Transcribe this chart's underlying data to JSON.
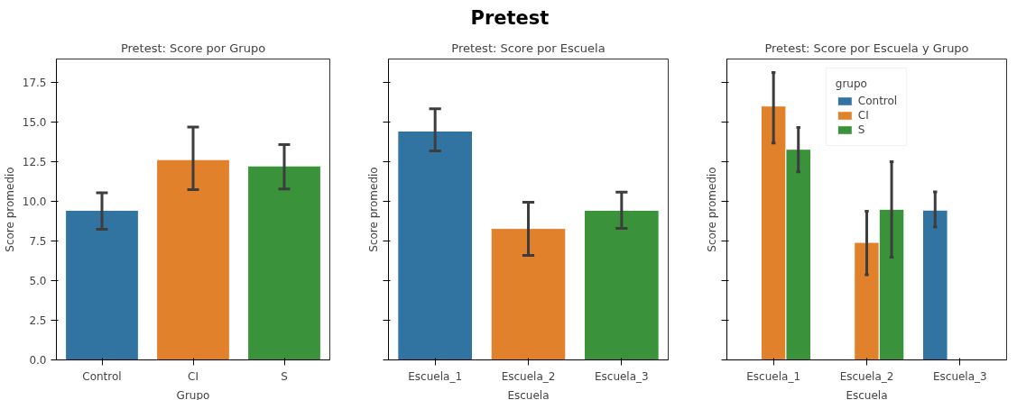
{
  "chart_data": [
    {
      "type": "other",
      "title": "Pretest"
    },
    {
      "type": "bar",
      "title": "Pretest: Score por Grupo",
      "xlabel": "Grupo",
      "ylabel": "Score promedio",
      "categories": [
        "Control",
        "CI",
        "S"
      ],
      "values": [
        9.45,
        12.65,
        12.25
      ],
      "colors": [
        "#3274a1",
        "#e1812c",
        "#3a923a"
      ],
      "errors": [
        [
          8.25,
          10.55
        ],
        [
          10.75,
          14.7
        ],
        [
          10.8,
          13.6
        ]
      ],
      "ylim": [
        0,
        19
      ],
      "yticks": [
        {
          "value": 0,
          "label": "0.0"
        },
        {
          "value": 2.5,
          "label": "2.5"
        },
        {
          "value": 5,
          "label": "5.0"
        },
        {
          "value": 7.5,
          "label": "7.5"
        },
        {
          "value": 10,
          "label": "10.0"
        },
        {
          "value": 12.5,
          "label": "12.5"
        },
        {
          "value": 15,
          "label": "15.0"
        },
        {
          "value": 17.5,
          "label": "17.5"
        }
      ],
      "grid": false,
      "legend": false
    },
    {
      "type": "bar",
      "title": "Pretest: Score por Escuela",
      "xlabel": "Escuela",
      "ylabel": "Score promedio",
      "categories": [
        "Escuela_1",
        "Escuela_2",
        "Escuela_3"
      ],
      "values": [
        14.45,
        8.3,
        9.45
      ],
      "colors": [
        "#3274a1",
        "#e1812c",
        "#3a923a"
      ],
      "errors": [
        [
          13.2,
          15.85
        ],
        [
          6.6,
          9.95
        ],
        [
          8.3,
          10.6
        ]
      ],
      "ylim": [
        0,
        19
      ],
      "yticks": [
        0,
        2.5,
        5,
        7.5,
        10,
        12.5,
        15,
        17.5
      ],
      "tick_labels": "x",
      "grid": false,
      "legend": false
    },
    {
      "type": "bar",
      "title": "Pretest: Score por Escuela y Grupo",
      "xlabel": "Escuela",
      "ylabel": "Score promedio",
      "categories": [
        "Escuela_1",
        "Escuela_2",
        "Escuela_3"
      ],
      "legend_title": "grupo",
      "series": [
        {
          "name": "Control",
          "color": "#3274a1",
          "values": [
            null,
            null,
            9.46
          ],
          "errors": [
            null,
            null,
            [
              8.39,
              10.61
            ]
          ]
        },
        {
          "name": "CI",
          "color": "#e1812c",
          "values": [
            16.03,
            7.42,
            null
          ],
          "errors": [
            [
              13.7,
              18.14
            ],
            [
              5.38,
              9.38
            ],
            null
          ]
        },
        {
          "name": "S",
          "color": "#3a923a",
          "values": [
            13.3,
            9.51,
            null
          ],
          "errors": [
            [
              11.88,
              14.67
            ],
            [
              6.48,
              12.52
            ],
            null
          ]
        }
      ],
      "ylim": [
        0,
        19
      ],
      "yticks": [
        0,
        2.5,
        5,
        7.5,
        10,
        12.5,
        15,
        17.5
      ],
      "tick_labels": "x",
      "grid": false,
      "legend": "top"
    }
  ]
}
